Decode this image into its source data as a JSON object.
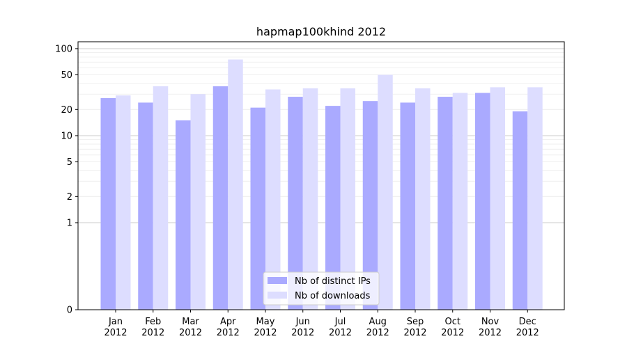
{
  "chart_data": {
    "type": "bar",
    "title": "hapmap100khind 2012",
    "xlabel": "",
    "ylabel": "",
    "y_scale": "symlog",
    "ylim": [
      0,
      120
    ],
    "y_ticks": [
      0,
      1,
      2,
      5,
      10,
      20,
      50,
      100
    ],
    "categories": [
      {
        "month": "Jan",
        "year": "2012"
      },
      {
        "month": "Feb",
        "year": "2012"
      },
      {
        "month": "Mar",
        "year": "2012"
      },
      {
        "month": "Apr",
        "year": "2012"
      },
      {
        "month": "May",
        "year": "2012"
      },
      {
        "month": "Jun",
        "year": "2012"
      },
      {
        "month": "Jul",
        "year": "2012"
      },
      {
        "month": "Aug",
        "year": "2012"
      },
      {
        "month": "Sep",
        "year": "2012"
      },
      {
        "month": "Oct",
        "year": "2012"
      },
      {
        "month": "Nov",
        "year": "2012"
      },
      {
        "month": "Dec",
        "year": "2012"
      }
    ],
    "series": [
      {
        "name": "Nb of distinct IPs",
        "color": "#aaaaff",
        "values": [
          27,
          24,
          15,
          37,
          21,
          28,
          22,
          25,
          24,
          28,
          31,
          19
        ]
      },
      {
        "name": "Nb of downloads",
        "color": "#ddddff",
        "values": [
          29,
          37,
          30,
          75,
          34,
          35,
          35,
          50,
          35,
          31,
          36,
          36
        ]
      }
    ],
    "grid": true,
    "legend_position": "lower-center"
  }
}
